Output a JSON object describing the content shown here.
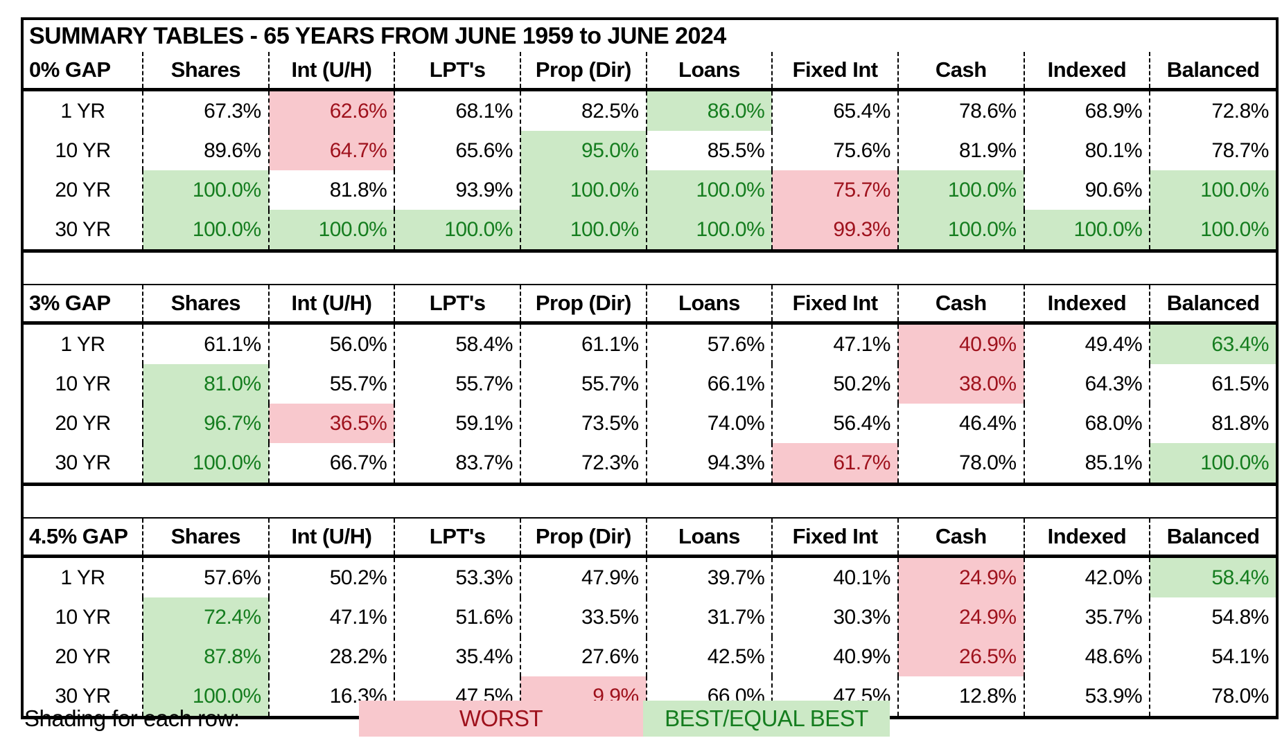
{
  "title": "SUMMARY TABLES - 65 YEARS FROM JUNE 1959 to JUNE 2024",
  "columns": [
    "Shares",
    "Int (U/H)",
    "LPT's",
    "Prop (Dir)",
    "Loans",
    "Fixed Int",
    "Cash",
    "Indexed",
    "Balanced"
  ],
  "legend": {
    "label": "Shading for each row:",
    "worst": "WORST",
    "best": "BEST/EQUAL BEST"
  },
  "colors": {
    "worst_bg": "#f8c8cd",
    "worst_text": "#9e111c",
    "best_bg": "#cce9c6",
    "best_text": "#157d1f"
  },
  "tables": [
    {
      "gap_label": "0% GAP",
      "rows": [
        {
          "label": "1 YR",
          "cells": [
            {
              "v": "67.3%",
              "s": ""
            },
            {
              "v": "62.6%",
              "s": "w"
            },
            {
              "v": "68.1%",
              "s": ""
            },
            {
              "v": "82.5%",
              "s": ""
            },
            {
              "v": "86.0%",
              "s": "b"
            },
            {
              "v": "65.4%",
              "s": ""
            },
            {
              "v": "78.6%",
              "s": ""
            },
            {
              "v": "68.9%",
              "s": ""
            },
            {
              "v": "72.8%",
              "s": ""
            }
          ]
        },
        {
          "label": "10 YR",
          "cells": [
            {
              "v": "89.6%",
              "s": ""
            },
            {
              "v": "64.7%",
              "s": "w"
            },
            {
              "v": "65.6%",
              "s": ""
            },
            {
              "v": "95.0%",
              "s": "b"
            },
            {
              "v": "85.5%",
              "s": ""
            },
            {
              "v": "75.6%",
              "s": ""
            },
            {
              "v": "81.9%",
              "s": ""
            },
            {
              "v": "80.1%",
              "s": ""
            },
            {
              "v": "78.7%",
              "s": ""
            }
          ]
        },
        {
          "label": "20 YR",
          "cells": [
            {
              "v": "100.0%",
              "s": "b"
            },
            {
              "v": "81.8%",
              "s": ""
            },
            {
              "v": "93.9%",
              "s": ""
            },
            {
              "v": "100.0%",
              "s": "b"
            },
            {
              "v": "100.0%",
              "s": "b"
            },
            {
              "v": "75.7%",
              "s": "w"
            },
            {
              "v": "100.0%",
              "s": "b"
            },
            {
              "v": "90.6%",
              "s": ""
            },
            {
              "v": "100.0%",
              "s": "b"
            }
          ]
        },
        {
          "label": "30 YR",
          "cells": [
            {
              "v": "100.0%",
              "s": "b"
            },
            {
              "v": "100.0%",
              "s": "b"
            },
            {
              "v": "100.0%",
              "s": "b"
            },
            {
              "v": "100.0%",
              "s": "b"
            },
            {
              "v": "100.0%",
              "s": "b"
            },
            {
              "v": "99.3%",
              "s": "w"
            },
            {
              "v": "100.0%",
              "s": "b"
            },
            {
              "v": "100.0%",
              "s": "b"
            },
            {
              "v": "100.0%",
              "s": "b"
            }
          ]
        }
      ]
    },
    {
      "gap_label": "3% GAP",
      "rows": [
        {
          "label": "1 YR",
          "cells": [
            {
              "v": "61.1%",
              "s": ""
            },
            {
              "v": "56.0%",
              "s": ""
            },
            {
              "v": "58.4%",
              "s": ""
            },
            {
              "v": "61.1%",
              "s": ""
            },
            {
              "v": "57.6%",
              "s": ""
            },
            {
              "v": "47.1%",
              "s": ""
            },
            {
              "v": "40.9%",
              "s": "w"
            },
            {
              "v": "49.4%",
              "s": ""
            },
            {
              "v": "63.4%",
              "s": "b"
            }
          ]
        },
        {
          "label": "10 YR",
          "cells": [
            {
              "v": "81.0%",
              "s": "b"
            },
            {
              "v": "55.7%",
              "s": ""
            },
            {
              "v": "55.7%",
              "s": ""
            },
            {
              "v": "55.7%",
              "s": ""
            },
            {
              "v": "66.1%",
              "s": ""
            },
            {
              "v": "50.2%",
              "s": ""
            },
            {
              "v": "38.0%",
              "s": "w"
            },
            {
              "v": "64.3%",
              "s": ""
            },
            {
              "v": "61.5%",
              "s": ""
            }
          ]
        },
        {
          "label": "20 YR",
          "cells": [
            {
              "v": "96.7%",
              "s": "b"
            },
            {
              "v": "36.5%",
              "s": "w"
            },
            {
              "v": "59.1%",
              "s": ""
            },
            {
              "v": "73.5%",
              "s": ""
            },
            {
              "v": "74.0%",
              "s": ""
            },
            {
              "v": "56.4%",
              "s": ""
            },
            {
              "v": "46.4%",
              "s": ""
            },
            {
              "v": "68.0%",
              "s": ""
            },
            {
              "v": "81.8%",
              "s": ""
            }
          ]
        },
        {
          "label": "30 YR",
          "cells": [
            {
              "v": "100.0%",
              "s": "b"
            },
            {
              "v": "66.7%",
              "s": ""
            },
            {
              "v": "83.7%",
              "s": ""
            },
            {
              "v": "72.3%",
              "s": ""
            },
            {
              "v": "94.3%",
              "s": ""
            },
            {
              "v": "61.7%",
              "s": "w"
            },
            {
              "v": "78.0%",
              "s": ""
            },
            {
              "v": "85.1%",
              "s": ""
            },
            {
              "v": "100.0%",
              "s": "b"
            }
          ]
        }
      ]
    },
    {
      "gap_label": "4.5% GAP",
      "rows": [
        {
          "label": "1 YR",
          "cells": [
            {
              "v": "57.6%",
              "s": ""
            },
            {
              "v": "50.2%",
              "s": ""
            },
            {
              "v": "53.3%",
              "s": ""
            },
            {
              "v": "47.9%",
              "s": ""
            },
            {
              "v": "39.7%",
              "s": ""
            },
            {
              "v": "40.1%",
              "s": ""
            },
            {
              "v": "24.9%",
              "s": "w"
            },
            {
              "v": "42.0%",
              "s": ""
            },
            {
              "v": "58.4%",
              "s": "b"
            }
          ]
        },
        {
          "label": "10 YR",
          "cells": [
            {
              "v": "72.4%",
              "s": "b"
            },
            {
              "v": "47.1%",
              "s": ""
            },
            {
              "v": "51.6%",
              "s": ""
            },
            {
              "v": "33.5%",
              "s": ""
            },
            {
              "v": "31.7%",
              "s": ""
            },
            {
              "v": "30.3%",
              "s": ""
            },
            {
              "v": "24.9%",
              "s": "w"
            },
            {
              "v": "35.7%",
              "s": ""
            },
            {
              "v": "54.8%",
              "s": ""
            }
          ]
        },
        {
          "label": "20 YR",
          "cells": [
            {
              "v": "87.8%",
              "s": "b"
            },
            {
              "v": "28.2%",
              "s": ""
            },
            {
              "v": "35.4%",
              "s": ""
            },
            {
              "v": "27.6%",
              "s": ""
            },
            {
              "v": "42.5%",
              "s": ""
            },
            {
              "v": "40.9%",
              "s": ""
            },
            {
              "v": "26.5%",
              "s": "w"
            },
            {
              "v": "48.6%",
              "s": ""
            },
            {
              "v": "54.1%",
              "s": ""
            }
          ]
        },
        {
          "label": "30 YR",
          "cells": [
            {
              "v": "100.0%",
              "s": "b"
            },
            {
              "v": "16.3%",
              "s": ""
            },
            {
              "v": "47.5%",
              "s": ""
            },
            {
              "v": "9.9%",
              "s": "w"
            },
            {
              "v": "66.0%",
              "s": ""
            },
            {
              "v": "47.5%",
              "s": ""
            },
            {
              "v": "12.8%",
              "s": ""
            },
            {
              "v": "53.9%",
              "s": ""
            },
            {
              "v": "78.0%",
              "s": ""
            }
          ]
        }
      ]
    }
  ]
}
